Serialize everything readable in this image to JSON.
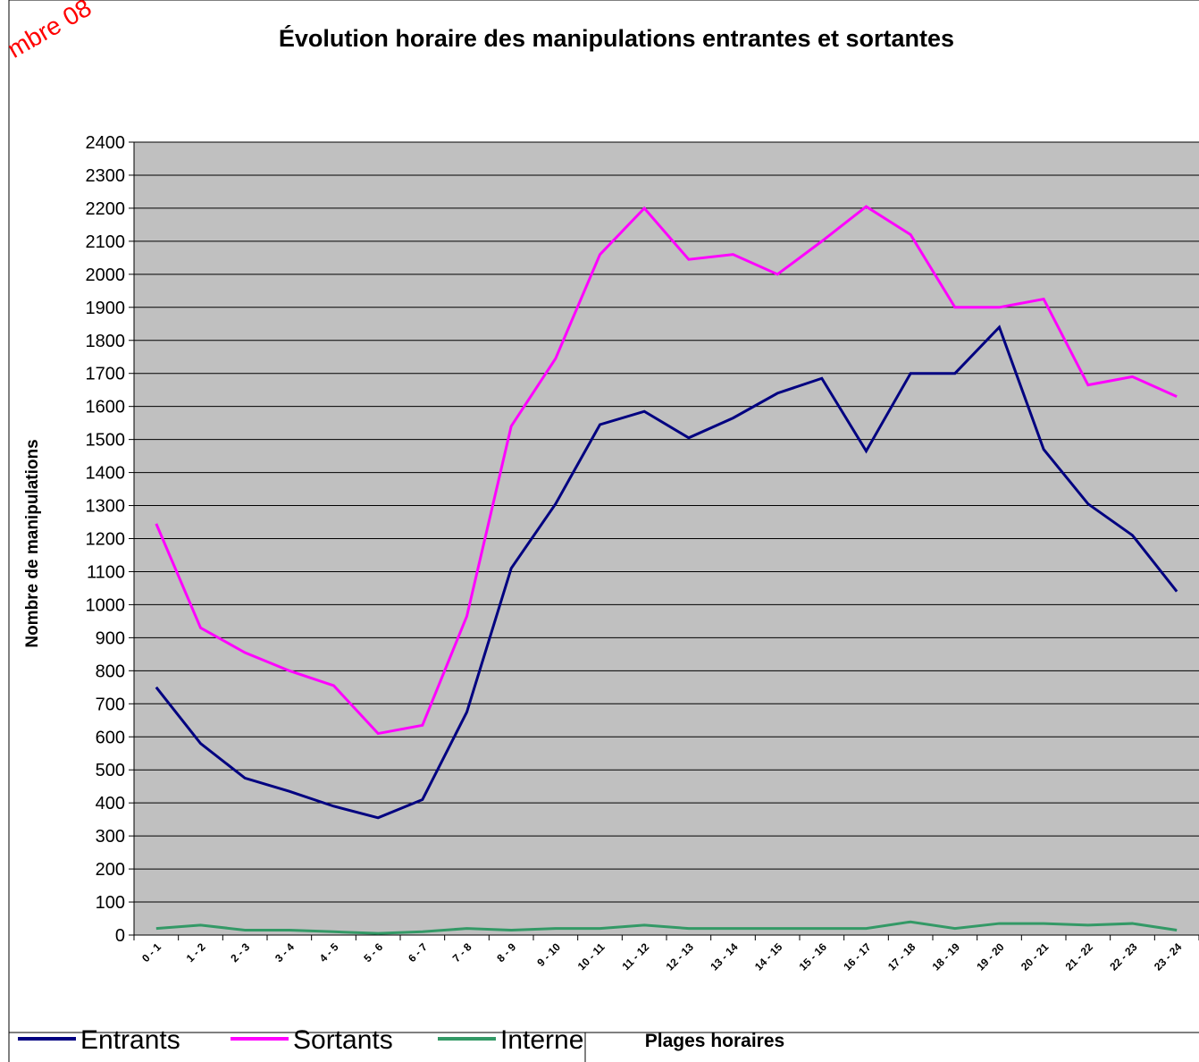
{
  "chart_data": {
    "type": "line",
    "title": "Évolution horaire des manipulations entrantes et sortantes",
    "annotation": "mbre 08",
    "y_label": "Nombre de manipulations",
    "x_label": "Plages horaires",
    "categories": [
      "0 - 1",
      "1 - 2",
      "2 - 3",
      "3 - 4",
      "4 - 5",
      "5 - 6",
      "6 - 7",
      "7 - 8",
      "8 - 9",
      "9 - 10",
      "10 - 11",
      "11 - 12",
      "12 - 13",
      "13 - 14",
      "14 - 15",
      "15 - 16",
      "16 - 17",
      "17 - 18",
      "18 - 19",
      "19 - 20",
      "20 - 21",
      "21 - 22",
      "22 - 23",
      "23 - 24"
    ],
    "series": [
      {
        "name": "Entrants",
        "color": "#000080",
        "values": [
          750,
          580,
          475,
          435,
          390,
          355,
          410,
          675,
          1110,
          1305,
          1545,
          1585,
          1505,
          1565,
          1640,
          1685,
          1465,
          1700,
          1700,
          1840,
          1470,
          1305,
          1210,
          1040
        ]
      },
      {
        "name": "Sortants",
        "color": "#ff00ff",
        "values": [
          1245,
          930,
          855,
          800,
          755,
          610,
          635,
          965,
          1540,
          1745,
          2060,
          2200,
          2045,
          2060,
          2000,
          2100,
          2205,
          2120,
          1900,
          1900,
          1925,
          1665,
          1690,
          1630
        ]
      },
      {
        "name": "Interne",
        "color": "#339966",
        "values": [
          20,
          30,
          15,
          15,
          10,
          5,
          10,
          20,
          15,
          20,
          20,
          30,
          20,
          20,
          20,
          20,
          20,
          40,
          20,
          35,
          35,
          30,
          35,
          15
        ]
      }
    ],
    "ylim": [
      0,
      2400
    ],
    "yticks": [
      0,
      100,
      200,
      300,
      400,
      500,
      600,
      700,
      800,
      900,
      1000,
      1100,
      1200,
      1300,
      1400,
      1500,
      1600,
      1700,
      1800,
      1900,
      2000,
      2100,
      2200,
      2300,
      2400
    ],
    "grid": true,
    "plot_background": "#c0c0c0",
    "legend": "bottom-left"
  }
}
